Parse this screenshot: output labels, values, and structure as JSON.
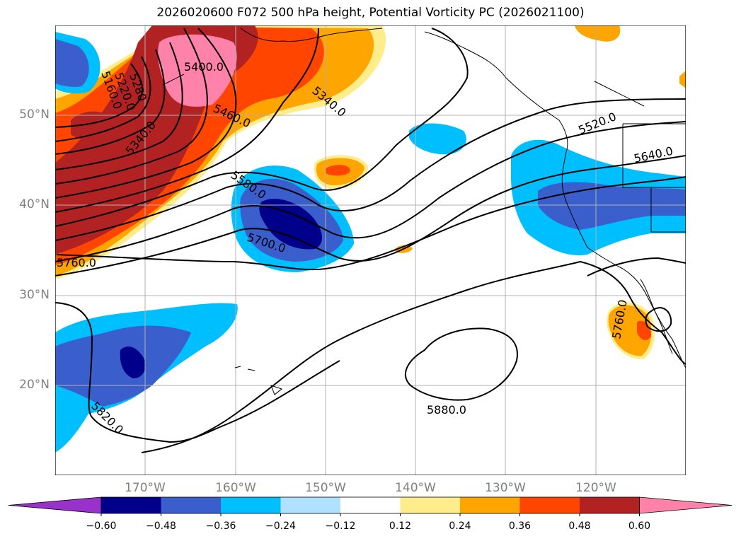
{
  "title": "2026020600 F072 500 hPa height, Potential Vorticity PC (2026021100)",
  "lat_labels": [
    "50°N",
    "40°N",
    "30°N",
    "20°N"
  ],
  "lon_labels": [
    "170°W",
    "160°W",
    "150°W",
    "140°W",
    "130°W",
    "120°W"
  ],
  "contour_labels": [
    "5400.0",
    "5280",
    "5220.0",
    "5160.0",
    "5340.0",
    "5340.0",
    "5460.0",
    "5580.0",
    "5700.0",
    "5760.0",
    "5520.0",
    "5640.0",
    "5760.0",
    "5880.0",
    "5820.0"
  ],
  "colorbar": {
    "ticks": [
      "−0.60",
      "−0.48",
      "−0.36",
      "−0.24",
      "−0.12",
      "0.12",
      "0.24",
      "0.36",
      "0.48",
      "0.60"
    ],
    "colors": [
      "#9932cc",
      "#00008b",
      "#3a5fcd",
      "#00bfff",
      "#b0e2ff",
      "#ffffff",
      "#ffec8b",
      "#ffa500",
      "#ff4500",
      "#b22222",
      "#ff82ab"
    ]
  }
}
